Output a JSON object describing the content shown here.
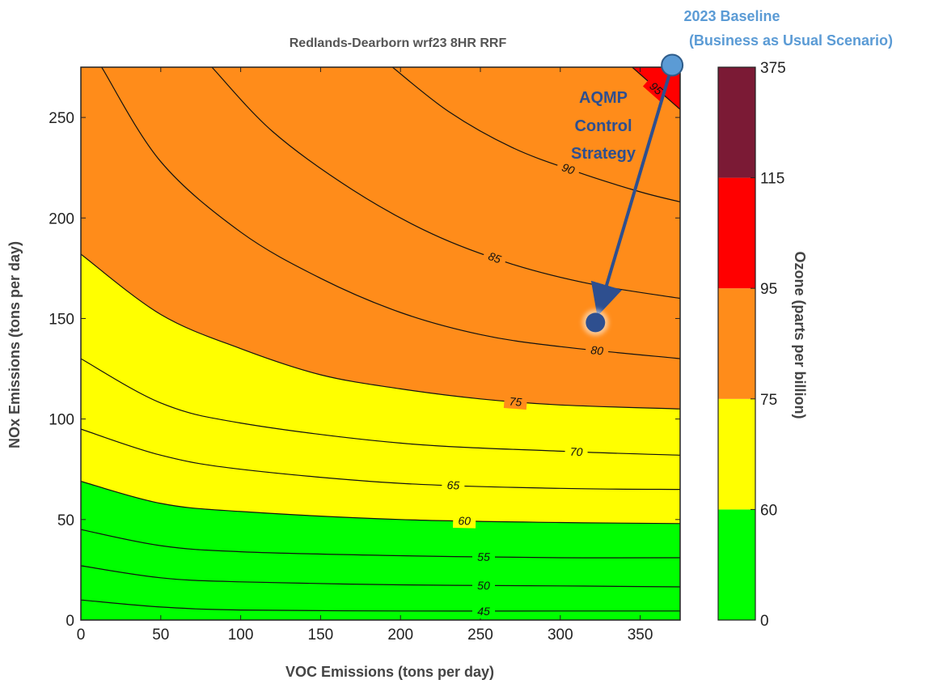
{
  "chart_data": {
    "type": "contour",
    "title": "Redlands-Dearborn wrf23 8HR RRF",
    "xlabel": "VOC Emissions (tons per day)",
    "ylabel": "NOx Emissions (tons per day)",
    "xlim": [
      0,
      375
    ],
    "ylim": [
      0,
      275
    ],
    "x_ticks": [
      "0",
      "50",
      "100",
      "150",
      "200",
      "250",
      "300",
      "350"
    ],
    "y_ticks": [
      "0",
      "50",
      "100",
      "150",
      "200",
      "250"
    ],
    "grid": false,
    "contours": [
      {
        "level": "45",
        "points": [
          [
            0,
            10
          ],
          [
            50,
            6.5
          ],
          [
            100,
            5
          ],
          [
            200,
            4.5
          ],
          [
            300,
            4.5
          ],
          [
            375,
            4.5
          ]
        ]
      },
      {
        "level": "50",
        "points": [
          [
            0,
            27
          ],
          [
            50,
            21
          ],
          [
            100,
            19
          ],
          [
            200,
            17.5
          ],
          [
            300,
            17
          ],
          [
            375,
            16.5
          ]
        ]
      },
      {
        "level": "55",
        "points": [
          [
            0,
            45
          ],
          [
            50,
            37
          ],
          [
            100,
            34
          ],
          [
            200,
            32
          ],
          [
            300,
            31
          ],
          [
            375,
            31
          ]
        ]
      },
      {
        "level": "60",
        "points": [
          [
            0,
            69
          ],
          [
            50,
            58
          ],
          [
            100,
            54
          ],
          [
            200,
            50
          ],
          [
            300,
            48.5
          ],
          [
            375,
            48
          ]
        ]
      },
      {
        "level": "65",
        "points": [
          [
            0,
            95
          ],
          [
            50,
            82
          ],
          [
            100,
            75
          ],
          [
            200,
            68
          ],
          [
            300,
            65.5
          ],
          [
            375,
            65
          ]
        ]
      },
      {
        "level": "70",
        "points": [
          [
            0,
            130
          ],
          [
            50,
            108
          ],
          [
            100,
            98
          ],
          [
            200,
            88
          ],
          [
            300,
            84
          ],
          [
            375,
            82
          ]
        ]
      },
      {
        "level": "75",
        "points": [
          [
            0,
            182
          ],
          [
            50,
            152
          ],
          [
            100,
            135
          ],
          [
            150,
            122
          ],
          [
            200,
            115
          ],
          [
            250,
            110
          ],
          [
            300,
            107
          ],
          [
            375,
            105
          ]
        ]
      },
      {
        "level": "80",
        "points": [
          [
            13,
            275
          ],
          [
            50,
            228
          ],
          [
            100,
            193
          ],
          [
            150,
            170
          ],
          [
            200,
            153
          ],
          [
            250,
            142
          ],
          [
            300,
            136
          ],
          [
            375,
            130
          ]
        ]
      },
      {
        "level": "85",
        "points": [
          [
            82,
            275
          ],
          [
            120,
            243
          ],
          [
            170,
            214
          ],
          [
            220,
            192
          ],
          [
            270,
            177
          ],
          [
            320,
            167
          ],
          [
            375,
            160
          ]
        ]
      },
      {
        "level": "90",
        "points": [
          [
            195,
            275
          ],
          [
            230,
            253
          ],
          [
            270,
            235
          ],
          [
            310,
            223
          ],
          [
            350,
            213
          ],
          [
            375,
            208
          ]
        ]
      },
      {
        "level": "95",
        "points": [
          [
            345,
            275
          ],
          [
            375,
            254
          ]
        ]
      }
    ],
    "colorbar": {
      "label": "Ozone (parts per billion)",
      "ticks": [
        "0",
        "60",
        "75",
        "95",
        "115",
        "375"
      ],
      "bands": [
        {
          "from": 0,
          "to": 60,
          "color": "#00ff00"
        },
        {
          "from": 60,
          "to": 75,
          "color": "#ffff00"
        },
        {
          "from": 75,
          "to": 95,
          "color": "#ff8c1a"
        },
        {
          "from": 95,
          "to": 115,
          "color": "#ff0000"
        },
        {
          "from": 115,
          "to": 375,
          "color": "#7b1a35"
        }
      ]
    },
    "annotations": {
      "baseline_point": {
        "x": 370,
        "y": 276,
        "label_line1": "2023 Baseline",
        "label_line2": "(Business as Usual Scenario)",
        "color": "#5b9bd5"
      },
      "control_point": {
        "x": 322,
        "y": 148,
        "color": "#2e4f8f"
      },
      "arrow_label": [
        "AQMP",
        "Control",
        "Strategy"
      ]
    }
  }
}
